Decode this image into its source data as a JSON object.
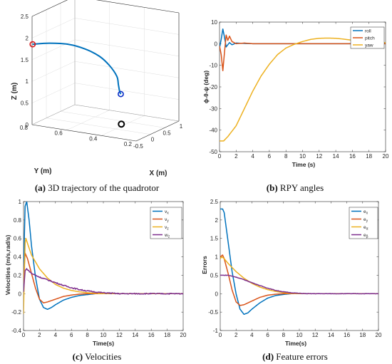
{
  "colors": {
    "blue": "#0072BD",
    "orange": "#D95319",
    "yellow": "#EDB120",
    "purple": "#7E2F8E",
    "red": "#D7191C",
    "black": "#000000"
  },
  "chart_data": [
    {
      "id": "a",
      "type": "line3d",
      "caption_letter": "(a)",
      "caption": " 3D trajectory of the quadrotor",
      "xlabel": "X (m)",
      "ylabel": "Y (m)",
      "zlabel": "Z (m)",
      "xlim": [
        -0.5,
        1
      ],
      "ylim": [
        0.2,
        0.8
      ],
      "zlim": [
        0,
        2.5
      ],
      "xticks": [
        -0.5,
        0,
        0.5,
        1
      ],
      "yticks": [
        0.2,
        0.4,
        0.6,
        0.8
      ],
      "zticks": [
        0,
        0.5,
        1,
        1.5,
        2,
        2.5
      ],
      "path": [
        [
          -0.48,
          0.8,
          1.85
        ],
        [
          -0.2,
          0.75,
          1.82
        ],
        [
          0.15,
          0.7,
          1.72
        ],
        [
          0.45,
          0.65,
          1.55
        ],
        [
          0.65,
          0.6,
          1.35
        ],
        [
          0.7,
          0.55,
          1.15
        ],
        [
          0.65,
          0.5,
          0.95
        ],
        [
          0.52,
          0.47,
          0.82
        ],
        [
          0.38,
          0.44,
          0.73
        ],
        [
          0.3,
          0.42,
          0.7
        ]
      ],
      "start_point": [
        -0.48,
        0.8,
        1.85
      ],
      "end_point": [
        0.3,
        0.42,
        0.7
      ],
      "target_point": [
        0.32,
        0.42,
        0.0
      ]
    },
    {
      "id": "b",
      "type": "line",
      "caption_letter": "(b)",
      "caption": " RPY angles",
      "xlabel": "Time (s)",
      "ylabel": "ϕ-θ-ψ (deg)",
      "xlim": [
        0,
        20
      ],
      "ylim": [
        -50,
        10
      ],
      "xticks": [
        0,
        2,
        4,
        6,
        8,
        10,
        12,
        14,
        16,
        18,
        20
      ],
      "yticks": [
        -50,
        -40,
        -30,
        -20,
        -10,
        0,
        10
      ],
      "series": [
        {
          "name": "roll",
          "color": "#0072BD",
          "points": [
            [
              0,
              -2
            ],
            [
              0.2,
              2
            ],
            [
              0.4,
              6.8
            ],
            [
              0.6,
              3
            ],
            [
              0.8,
              -1.5
            ],
            [
              1.0,
              -0.5
            ],
            [
              1.2,
              0.5
            ],
            [
              1.5,
              -0.5
            ],
            [
              2,
              0.3
            ],
            [
              3,
              0.1
            ],
            [
              4,
              0
            ],
            [
              20,
              0
            ]
          ]
        },
        {
          "name": "pitch",
          "color": "#D95319",
          "points": [
            [
              0,
              -1
            ],
            [
              0.2,
              -5
            ],
            [
              0.4,
              -12.5
            ],
            [
              0.6,
              -4
            ],
            [
              0.8,
              4
            ],
            [
              1.0,
              1.5
            ],
            [
              1.2,
              3.5
            ],
            [
              1.5,
              1
            ],
            [
              2,
              0
            ],
            [
              3,
              0.3
            ],
            [
              4,
              0
            ],
            [
              20,
              0
            ]
          ]
        },
        {
          "name": "yaw",
          "color": "#EDB120",
          "points": [
            [
              0,
              -45
            ],
            [
              0.5,
              -45
            ],
            [
              1,
              -43
            ],
            [
              2,
              -38
            ],
            [
              3,
              -30
            ],
            [
              4,
              -22
            ],
            [
              5,
              -15
            ],
            [
              6,
              -9.5
            ],
            [
              7,
              -5
            ],
            [
              8,
              -2
            ],
            [
              9,
              -0.3
            ],
            [
              10,
              1
            ],
            [
              11,
              2
            ],
            [
              12,
              2.5
            ],
            [
              13,
              2.6
            ],
            [
              14,
              2.5
            ],
            [
              15,
              2.1
            ],
            [
              16,
              1.6
            ],
            [
              17,
              1.2
            ],
            [
              18,
              0.9
            ],
            [
              19,
              0.7
            ],
            [
              20,
              0.5
            ]
          ]
        }
      ]
    },
    {
      "id": "c",
      "type": "line",
      "caption_letter": "(c)",
      "caption": " Velocities",
      "xlabel": "Time(s)",
      "ylabel": "Velocities (m/s,rad/s)",
      "xlim": [
        0,
        20
      ],
      "ylim": [
        -0.4,
        1
      ],
      "xticks": [
        0,
        2,
        4,
        6,
        8,
        10,
        12,
        14,
        16,
        18,
        20
      ],
      "yticks": [
        -0.4,
        -0.2,
        0,
        0.2,
        0.4,
        0.6,
        0.8,
        1
      ],
      "series": [
        {
          "name": "v",
          "sub": "x",
          "color": "#0072BD",
          "points": [
            [
              0,
              0.05
            ],
            [
              0.1,
              0.6
            ],
            [
              0.2,
              0.95
            ],
            [
              0.4,
              1.0
            ],
            [
              0.7,
              0.8
            ],
            [
              1,
              0.52
            ],
            [
              1.5,
              0.18
            ],
            [
              2,
              -0.06
            ],
            [
              2.5,
              -0.15
            ],
            [
              3,
              -0.17
            ],
            [
              3.5,
              -0.15
            ],
            [
              4,
              -0.12
            ],
            [
              5,
              -0.07
            ],
            [
              6,
              -0.04
            ],
            [
              7,
              -0.02
            ],
            [
              8,
              -0.01
            ],
            [
              9,
              0
            ],
            [
              20,
              0
            ]
          ]
        },
        {
          "name": "v",
          "sub": "y",
          "color": "#D95319",
          "points": [
            [
              0,
              0.05
            ],
            [
              0.1,
              0.3
            ],
            [
              0.2,
              0.44
            ],
            [
              0.5,
              0.38
            ],
            [
              1,
              0.22
            ],
            [
              1.5,
              0.06
            ],
            [
              2,
              -0.06
            ],
            [
              2.5,
              -0.1
            ],
            [
              3,
              -0.09
            ],
            [
              4,
              -0.06
            ],
            [
              5,
              -0.03
            ],
            [
              6,
              -0.015
            ],
            [
              7,
              -0.005
            ],
            [
              8,
              0
            ],
            [
              20,
              0
            ]
          ]
        },
        {
          "name": "v",
          "sub": "z",
          "color": "#EDB120",
          "points": [
            [
              0,
              -0.22
            ],
            [
              0.1,
              0.2
            ],
            [
              0.2,
              0.55
            ],
            [
              0.3,
              0.6
            ],
            [
              0.6,
              0.52
            ],
            [
              1,
              0.42
            ],
            [
              2,
              0.27
            ],
            [
              3,
              0.17
            ],
            [
              4,
              0.1
            ],
            [
              5,
              0.06
            ],
            [
              6,
              0.035
            ],
            [
              7,
              0.02
            ],
            [
              8,
              0.01
            ],
            [
              9,
              0.005
            ],
            [
              10,
              0
            ],
            [
              20,
              0
            ]
          ]
        },
        {
          "name": "w",
          "sub": "z",
          "color": "#7E2F8E",
          "noisy": true,
          "points": [
            [
              0,
              0.02
            ],
            [
              0.2,
              0.25
            ],
            [
              0.4,
              0.27
            ],
            [
              1,
              0.22
            ],
            [
              2,
              0.18
            ],
            [
              3,
              0.15
            ],
            [
              4,
              0.12
            ],
            [
              5,
              0.09
            ],
            [
              6,
              0.065
            ],
            [
              7,
              0.045
            ],
            [
              8,
              0.03
            ],
            [
              9,
              0.018
            ],
            [
              10,
              0.01
            ],
            [
              11,
              0.005
            ],
            [
              12,
              0
            ],
            [
              20,
              0
            ]
          ]
        }
      ]
    },
    {
      "id": "d",
      "type": "line",
      "caption_letter": "(d)",
      "caption": " Feature errors",
      "xlabel": "Time(s)",
      "ylabel": "Errors",
      "xlim": [
        0,
        20
      ],
      "ylim": [
        -1,
        2.5
      ],
      "xticks": [
        0,
        2,
        4,
        6,
        8,
        10,
        12,
        14,
        16,
        18,
        20
      ],
      "yticks": [
        -1,
        -0.5,
        0,
        0.5,
        1,
        1.5,
        2,
        2.5
      ],
      "series": [
        {
          "name": "e",
          "sub": "x",
          "color": "#0072BD",
          "points": [
            [
              0,
              2.3
            ],
            [
              0.3,
              2.3
            ],
            [
              0.5,
              2.2
            ],
            [
              1,
              1.4
            ],
            [
              1.5,
              0.6
            ],
            [
              2,
              0.0
            ],
            [
              2.5,
              -0.42
            ],
            [
              3,
              -0.56
            ],
            [
              3.5,
              -0.52
            ],
            [
              4,
              -0.42
            ],
            [
              5,
              -0.25
            ],
            [
              6,
              -0.12
            ],
            [
              7,
              -0.05
            ],
            [
              8,
              -0.02
            ],
            [
              9,
              0
            ],
            [
              20,
              0
            ]
          ]
        },
        {
          "name": "e",
          "sub": "y",
          "color": "#D95319",
          "points": [
            [
              0,
              1.0
            ],
            [
              0.3,
              1.05
            ],
            [
              0.5,
              0.95
            ],
            [
              1,
              0.55
            ],
            [
              1.5,
              0.1
            ],
            [
              2,
              -0.22
            ],
            [
              2.5,
              -0.32
            ],
            [
              3,
              -0.3
            ],
            [
              4,
              -0.2
            ],
            [
              5,
              -0.1
            ],
            [
              6,
              -0.04
            ],
            [
              7,
              -0.015
            ],
            [
              8,
              0
            ],
            [
              20,
              0
            ]
          ]
        },
        {
          "name": "e",
          "sub": "α",
          "color": "#EDB120",
          "points": [
            [
              0,
              0.95
            ],
            [
              0.2,
              1.0
            ],
            [
              0.5,
              0.95
            ],
            [
              1,
              0.82
            ],
            [
              2,
              0.6
            ],
            [
              3,
              0.42
            ],
            [
              4,
              0.28
            ],
            [
              5,
              0.18
            ],
            [
              6,
              0.11
            ],
            [
              7,
              0.06
            ],
            [
              8,
              0.03
            ],
            [
              9,
              0.01
            ],
            [
              10,
              0
            ],
            [
              20,
              0
            ]
          ]
        },
        {
          "name": "e",
          "sub": "β",
          "color": "#7E2F8E",
          "noisy": true,
          "points": [
            [
              0,
              0.5
            ],
            [
              1,
              0.5
            ],
            [
              2,
              0.45
            ],
            [
              3,
              0.38
            ],
            [
              4,
              0.3
            ],
            [
              5,
              0.22
            ],
            [
              6,
              0.15
            ],
            [
              7,
              0.09
            ],
            [
              8,
              0.05
            ],
            [
              9,
              0.025
            ],
            [
              10,
              0.01
            ],
            [
              11,
              0
            ],
            [
              20,
              0
            ]
          ]
        }
      ]
    }
  ]
}
